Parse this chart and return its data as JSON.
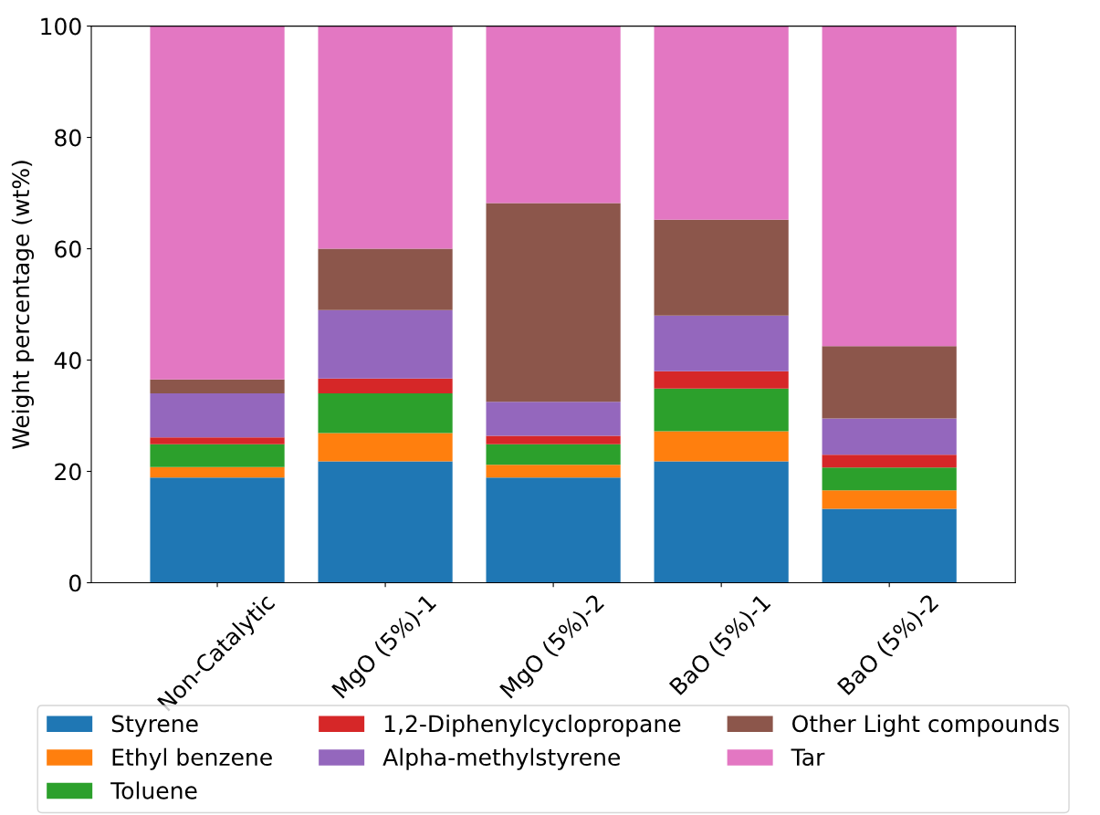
{
  "chart_data": {
    "type": "bar",
    "stacked": true,
    "ylabel": "Weight percentage (wt%)",
    "categories": [
      "Non-Catalytic",
      "MgO (5%)-1",
      "MgO (5%)-2",
      "BaO (5%)-1",
      "BaO (5%)-2"
    ],
    "series": [
      {
        "name": "Styrene",
        "color": "#1f77b4",
        "values": [
          18.9,
          21.8,
          18.9,
          21.8,
          13.3
        ]
      },
      {
        "name": "Ethyl benzene",
        "color": "#ff7f0e",
        "values": [
          1.9,
          5.1,
          2.3,
          5.4,
          3.3
        ]
      },
      {
        "name": "Toluene",
        "color": "#2ca02c",
        "values": [
          4.1,
          7.1,
          3.7,
          7.7,
          4.1
        ]
      },
      {
        "name": "1,2-Diphenylcyclopropane",
        "color": "#d62728",
        "values": [
          1.2,
          2.7,
          1.5,
          3.1,
          2.3
        ]
      },
      {
        "name": "Alpha-methylstyrene",
        "color": "#9467bd",
        "values": [
          7.9,
          12.3,
          6.1,
          10.0,
          6.5
        ]
      },
      {
        "name": "Other Light compounds",
        "color": "#8c564b",
        "values": [
          2.5,
          11.0,
          35.7,
          17.2,
          13.0
        ]
      },
      {
        "name": "Tar",
        "color": "#e377c2",
        "values": [
          63.5,
          40.0,
          31.8,
          34.8,
          57.5
        ]
      }
    ],
    "ylim": [
      0,
      100
    ],
    "yticks": [
      0,
      20,
      40,
      60,
      80,
      100
    ],
    "grid": false,
    "legend": "bottom"
  }
}
